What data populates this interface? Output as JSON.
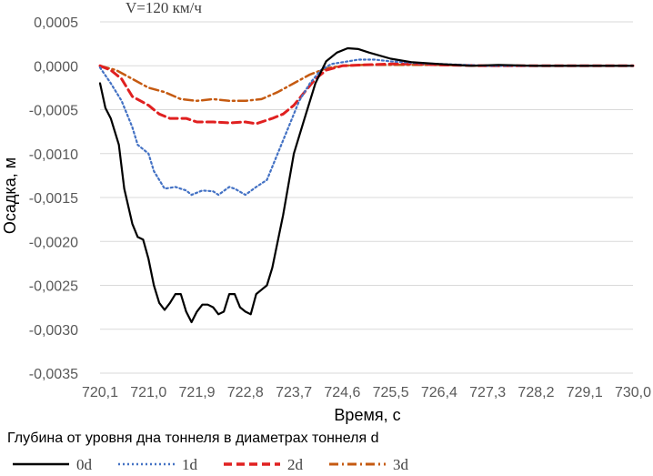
{
  "chart_data": {
    "type": "line",
    "annotation": "V=120 км/ч",
    "xlabel": "Время, с",
    "ylabel": "Осадка, м",
    "legend_title": "Глубина от уровня дна тоннеля в диаметрах тоннеля d",
    "legend_position": "bottom",
    "grid": "horizontal",
    "xlim": [
      720.1,
      730.0
    ],
    "ylim": [
      -0.0035,
      0.0005
    ],
    "x_ticks": [
      "720,1",
      "721,0",
      "721,9",
      "722,8",
      "723,7",
      "724,6",
      "725,5",
      "726,4",
      "727,3",
      "728,2",
      "729,1",
      "730,0"
    ],
    "y_ticks": [
      "0,0005",
      "0,0000",
      "-0,0005",
      "-0,0010",
      "-0,0015",
      "-0,0020",
      "-0,0025",
      "-0,0030",
      "-0,0035"
    ],
    "series": [
      {
        "name": "0d",
        "color": "#000000",
        "dash": "solid",
        "points": [
          [
            720.1,
            -0.0002
          ],
          [
            720.2,
            -0.00048
          ],
          [
            720.3,
            -0.0006
          ],
          [
            720.45,
            -0.0009
          ],
          [
            720.55,
            -0.0014
          ],
          [
            720.7,
            -0.0018
          ],
          [
            720.8,
            -0.00195
          ],
          [
            720.9,
            -0.00198
          ],
          [
            721.0,
            -0.0022
          ],
          [
            721.1,
            -0.0025
          ],
          [
            721.2,
            -0.0027
          ],
          [
            721.3,
            -0.00278
          ],
          [
            721.4,
            -0.0027
          ],
          [
            721.5,
            -0.0026
          ],
          [
            721.6,
            -0.0026
          ],
          [
            721.7,
            -0.0028
          ],
          [
            721.8,
            -0.00292
          ],
          [
            721.9,
            -0.0028
          ],
          [
            722.0,
            -0.00272
          ],
          [
            722.1,
            -0.00272
          ],
          [
            722.2,
            -0.00275
          ],
          [
            722.3,
            -0.00283
          ],
          [
            722.4,
            -0.0028
          ],
          [
            722.5,
            -0.0026
          ],
          [
            722.6,
            -0.0026
          ],
          [
            722.7,
            -0.00275
          ],
          [
            722.8,
            -0.0028
          ],
          [
            722.9,
            -0.00283
          ],
          [
            723.0,
            -0.0026
          ],
          [
            723.1,
            -0.00255
          ],
          [
            723.2,
            -0.0025
          ],
          [
            723.3,
            -0.0023
          ],
          [
            723.5,
            -0.0017
          ],
          [
            723.7,
            -0.001
          ],
          [
            723.9,
            -0.0006
          ],
          [
            724.1,
            -0.0002
          ],
          [
            724.3,
            5e-05
          ],
          [
            724.5,
            0.00015
          ],
          [
            724.7,
            0.0002
          ],
          [
            724.9,
            0.00019
          ],
          [
            725.1,
            0.00015
          ],
          [
            725.5,
            8e-05
          ],
          [
            725.9,
            4e-05
          ],
          [
            726.4,
            2e-05
          ],
          [
            727.0,
            0.0
          ],
          [
            727.5,
            1e-05
          ],
          [
            728.2,
            0.0
          ],
          [
            729.1,
            0.0
          ],
          [
            730.0,
            0.0
          ]
        ]
      },
      {
        "name": "1d",
        "color": "#4472c4",
        "dash": "dotted",
        "points": [
          [
            720.1,
            -2e-05
          ],
          [
            720.3,
            -0.0002
          ],
          [
            720.5,
            -0.0004
          ],
          [
            720.7,
            -0.0007
          ],
          [
            720.8,
            -0.0009
          ],
          [
            721.0,
            -0.001
          ],
          [
            721.1,
            -0.0012
          ],
          [
            721.3,
            -0.0014
          ],
          [
            721.5,
            -0.00138
          ],
          [
            721.7,
            -0.00142
          ],
          [
            721.8,
            -0.00147
          ],
          [
            722.0,
            -0.00142
          ],
          [
            722.2,
            -0.00143
          ],
          [
            722.3,
            -0.00147
          ],
          [
            722.5,
            -0.00138
          ],
          [
            722.6,
            -0.0014
          ],
          [
            722.8,
            -0.00147
          ],
          [
            723.0,
            -0.00138
          ],
          [
            723.2,
            -0.0013
          ],
          [
            723.4,
            -0.001
          ],
          [
            723.6,
            -0.0007
          ],
          [
            723.8,
            -0.0004
          ],
          [
            724.0,
            -0.0002
          ],
          [
            724.2,
            -5e-05
          ],
          [
            724.4,
            2e-05
          ],
          [
            724.6,
            4e-05
          ],
          [
            724.9,
            7e-05
          ],
          [
            725.2,
            7e-05
          ],
          [
            725.5,
            5e-05
          ],
          [
            726.0,
            3e-05
          ],
          [
            726.4,
            2e-05
          ],
          [
            727.3,
            0.0
          ],
          [
            728.2,
            0.0
          ],
          [
            729.1,
            0.0
          ],
          [
            730.0,
            0.0
          ]
        ]
      },
      {
        "name": "2d",
        "color": "#e02020",
        "dash": "dashed",
        "points": [
          [
            720.1,
            0.0
          ],
          [
            720.3,
            -5e-05
          ],
          [
            720.5,
            -0.00015
          ],
          [
            720.7,
            -0.00035
          ],
          [
            721.0,
            -0.00045
          ],
          [
            721.2,
            -0.00055
          ],
          [
            721.4,
            -0.0006
          ],
          [
            721.7,
            -0.0006
          ],
          [
            721.9,
            -0.00064
          ],
          [
            722.2,
            -0.00064
          ],
          [
            722.5,
            -0.00065
          ],
          [
            722.8,
            -0.00064
          ],
          [
            723.0,
            -0.00066
          ],
          [
            723.3,
            -0.0006
          ],
          [
            723.5,
            -0.00055
          ],
          [
            723.7,
            -0.00045
          ],
          [
            723.9,
            -0.0003
          ],
          [
            724.1,
            -0.00015
          ],
          [
            724.3,
            -5e-05
          ],
          [
            724.6,
            0.0
          ],
          [
            725.0,
            1e-05
          ],
          [
            725.5,
            2e-05
          ],
          [
            726.0,
            2e-05
          ],
          [
            726.4,
            1e-05
          ],
          [
            727.3,
            0.0
          ],
          [
            728.2,
            0.0
          ],
          [
            729.1,
            0.0
          ],
          [
            730.0,
            0.0
          ]
        ]
      },
      {
        "name": "3d",
        "color": "#c55a11",
        "dash": "dash-dot",
        "points": [
          [
            720.1,
            0.0
          ],
          [
            720.4,
            -5e-05
          ],
          [
            720.7,
            -0.00015
          ],
          [
            721.0,
            -0.00025
          ],
          [
            721.3,
            -0.0003
          ],
          [
            721.6,
            -0.00038
          ],
          [
            721.9,
            -0.0004
          ],
          [
            722.2,
            -0.00038
          ],
          [
            722.5,
            -0.0004
          ],
          [
            722.8,
            -0.0004
          ],
          [
            723.1,
            -0.00038
          ],
          [
            723.4,
            -0.0003
          ],
          [
            723.7,
            -0.0002
          ],
          [
            724.0,
            -0.0001
          ],
          [
            724.3,
            -3e-05
          ],
          [
            724.6,
            0.0
          ],
          [
            725.0,
            1e-05
          ],
          [
            725.5,
            1e-05
          ],
          [
            726.4,
            1e-05
          ],
          [
            727.3,
            0.0
          ],
          [
            728.2,
            0.0
          ],
          [
            729.1,
            0.0
          ],
          [
            730.0,
            0.0
          ]
        ]
      }
    ]
  }
}
